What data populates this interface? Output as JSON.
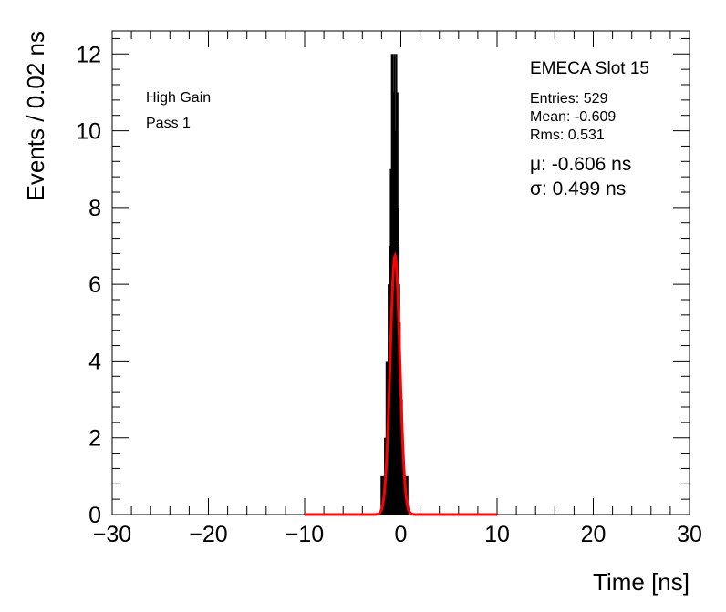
{
  "chart_data": {
    "type": "histogram",
    "xlabel": "Time [ns]",
    "ylabel": "Events / 0.02 ns",
    "xlim": [
      -30,
      30
    ],
    "ylim": [
      0,
      12.6
    ],
    "xticks": [
      "−30",
      "−20",
      "−10",
      "0",
      "10",
      "20",
      "30"
    ],
    "xtick_values": [
      -30,
      -20,
      -10,
      0,
      10,
      20,
      30
    ],
    "yticks": [
      "0",
      "2",
      "4",
      "6",
      "8",
      "10",
      "12"
    ],
    "ytick_values": [
      0,
      2,
      4,
      6,
      8,
      10,
      12
    ],
    "bin_width": 0.02,
    "histogram": {
      "color": "#000000",
      "bins": [
        {
          "x": -2.02,
          "y": 1
        },
        {
          "x": -1.9,
          "y": 1
        },
        {
          "x": -1.78,
          "y": 1
        },
        {
          "x": -1.66,
          "y": 2
        },
        {
          "x": -1.56,
          "y": 2
        },
        {
          "x": -1.5,
          "y": 4
        },
        {
          "x": -1.44,
          "y": 3
        },
        {
          "x": -1.36,
          "y": 4
        },
        {
          "x": -1.28,
          "y": 6
        },
        {
          "x": -1.2,
          "y": 5
        },
        {
          "x": -1.12,
          "y": 7
        },
        {
          "x": -1.06,
          "y": 9
        },
        {
          "x": -1.0,
          "y": 8
        },
        {
          "x": -0.94,
          "y": 12
        },
        {
          "x": -0.88,
          "y": 10
        },
        {
          "x": -0.82,
          "y": 12
        },
        {
          "x": -0.76,
          "y": 9
        },
        {
          "x": -0.7,
          "y": 11
        },
        {
          "x": -0.64,
          "y": 12
        },
        {
          "x": -0.58,
          "y": 8
        },
        {
          "x": -0.52,
          "y": 10
        },
        {
          "x": -0.46,
          "y": 12
        },
        {
          "x": -0.4,
          "y": 9
        },
        {
          "x": -0.34,
          "y": 11
        },
        {
          "x": -0.28,
          "y": 8
        },
        {
          "x": -0.22,
          "y": 7
        },
        {
          "x": -0.16,
          "y": 6
        },
        {
          "x": -0.1,
          "y": 5
        },
        {
          "x": -0.04,
          "y": 4
        },
        {
          "x": 0.04,
          "y": 3
        },
        {
          "x": 0.12,
          "y": 3
        },
        {
          "x": 0.2,
          "y": 2
        },
        {
          "x": 0.3,
          "y": 1
        },
        {
          "x": 0.4,
          "y": 1
        },
        {
          "x": 0.54,
          "y": 1
        },
        {
          "x": 0.7,
          "y": 1
        }
      ]
    },
    "fit": {
      "type": "gaussian",
      "color": "#ff0000",
      "mu": -0.606,
      "sigma": 0.499,
      "amplitude": 6.75,
      "x_range": [
        -10,
        10
      ]
    },
    "annotations": {
      "left": [
        "High Gain",
        "Pass 1"
      ],
      "title": "EMECA Slot 15",
      "stats": [
        "Entries: 529",
        "Mean: -0.609",
        "Rms: 0.531"
      ],
      "fit_mu": "μ: -0.606 ns",
      "fit_sigma": "σ: 0.499 ns"
    }
  }
}
